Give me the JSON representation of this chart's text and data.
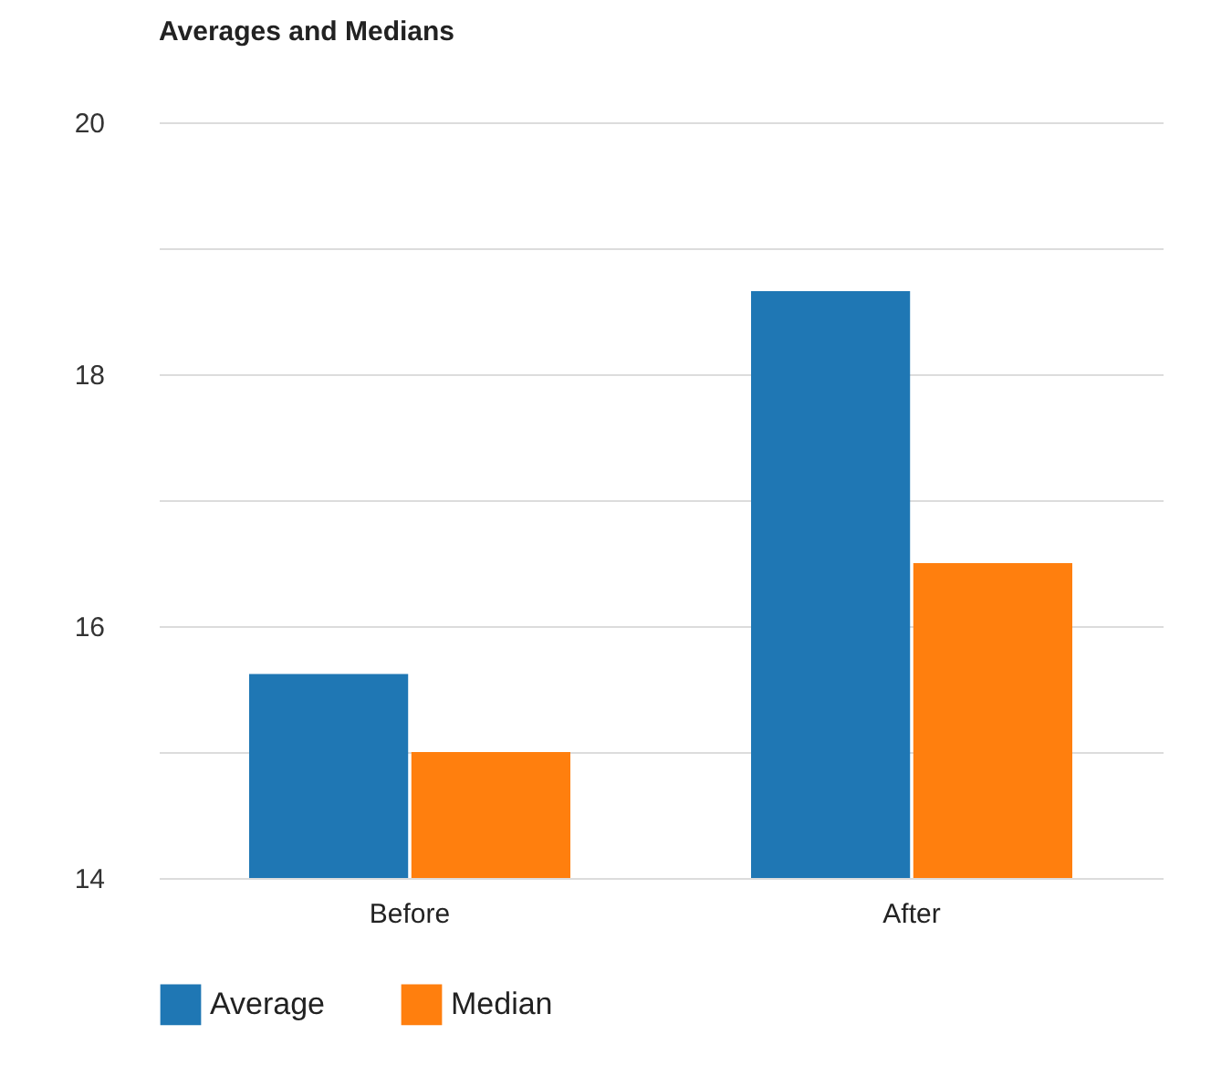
{
  "chart_data": {
    "type": "bar",
    "title": "Averages and Medians",
    "categories": [
      "Before",
      "After"
    ],
    "series": [
      {
        "name": "Average",
        "color": "#1f77b4",
        "values": [
          15.62,
          18.66
        ]
      },
      {
        "name": "Median",
        "color": "#ff7f0e",
        "values": [
          15.0,
          16.5
        ]
      }
    ],
    "ylim": [
      14,
      20
    ],
    "yticks": [
      14,
      {
        "value": 15,
        "label": null
      },
      16,
      {
        "value": 17,
        "label": null
      },
      18,
      {
        "value": 19,
        "label": null
      },
      20
    ],
    "grid": true,
    "legend": "bottom"
  }
}
